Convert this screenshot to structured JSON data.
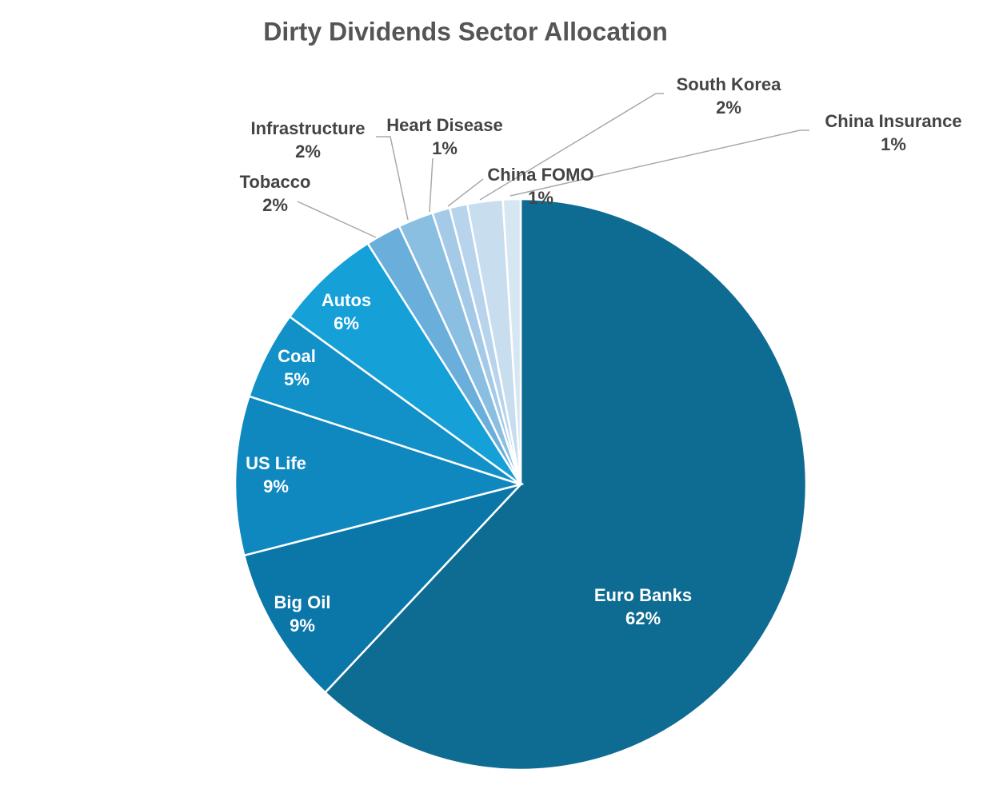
{
  "chart_data": {
    "type": "pie",
    "title": "Dirty Dividends Sector Allocation",
    "categories": [
      "Euro Banks",
      "Big Oil",
      "US Life",
      "Coal",
      "Autos",
      "Tobacco",
      "Infrastructure",
      "Heart Disease",
      "China FOMO",
      "South Korea",
      "China Insurance"
    ],
    "values": [
      62,
      9,
      9,
      5,
      6,
      2,
      2,
      1,
      1,
      2,
      1
    ],
    "value_labels": [
      "62%",
      "9%",
      "9%",
      "5%",
      "6%",
      "2%",
      "2%",
      "1%",
      "1%",
      "2%",
      "1%"
    ],
    "colors": [
      "#0e6b92",
      "#0a77a8",
      "#0f88bf",
      "#1290c8",
      "#16a0d8",
      "#6aaedb",
      "#8bbfe2",
      "#a5cae8",
      "#b7d4ec",
      "#c8ddee",
      "#d6e6f3"
    ]
  }
}
